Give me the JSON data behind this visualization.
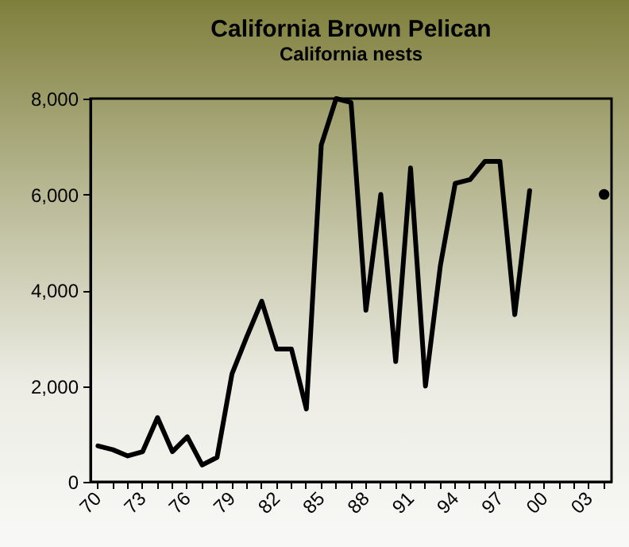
{
  "chart_data": {
    "type": "line",
    "title": "California Brown Pelican",
    "subtitle": "California nests",
    "categories": [
      "70",
      null,
      null,
      "73",
      null,
      null,
      "76",
      null,
      null,
      "79",
      null,
      null,
      "82",
      null,
      null,
      "85",
      null,
      null,
      "88",
      null,
      null,
      "91",
      null,
      null,
      "94",
      null,
      null,
      "97",
      null,
      null,
      "00",
      null,
      null,
      "03",
      null
    ],
    "series": [
      {
        "color": "#000000",
        "values": [
          750,
          670,
          540,
          630,
          1340,
          630,
          940,
          350,
          510,
          2250,
          3030,
          3770,
          2770,
          2770,
          1520,
          7030,
          8000,
          7920,
          3580,
          6000,
          2510,
          6550,
          2000,
          4510,
          6230,
          6310,
          6690,
          6690,
          3490,
          6080,
          null,
          null,
          null,
          null,
          null
        ]
      },
      {
        "type": "scatter",
        "color": "#000000",
        "values": [
          null,
          null,
          null,
          null,
          null,
          null,
          null,
          null,
          null,
          null,
          null,
          null,
          null,
          null,
          null,
          null,
          null,
          null,
          null,
          null,
          null,
          null,
          null,
          null,
          null,
          null,
          null,
          null,
          null,
          null,
          null,
          null,
          null,
          null,
          6000
        ]
      }
    ],
    "ylim": [
      0,
      8000
    ],
    "yticks": [
      {
        "value": 0,
        "label": "0"
      },
      {
        "value": 2000,
        "label": "2,000"
      },
      {
        "value": 4000,
        "label": "4,000"
      },
      {
        "value": 6000,
        "label": "6,000"
      },
      {
        "value": 8000,
        "label": "8,000"
      }
    ],
    "grid": false
  }
}
